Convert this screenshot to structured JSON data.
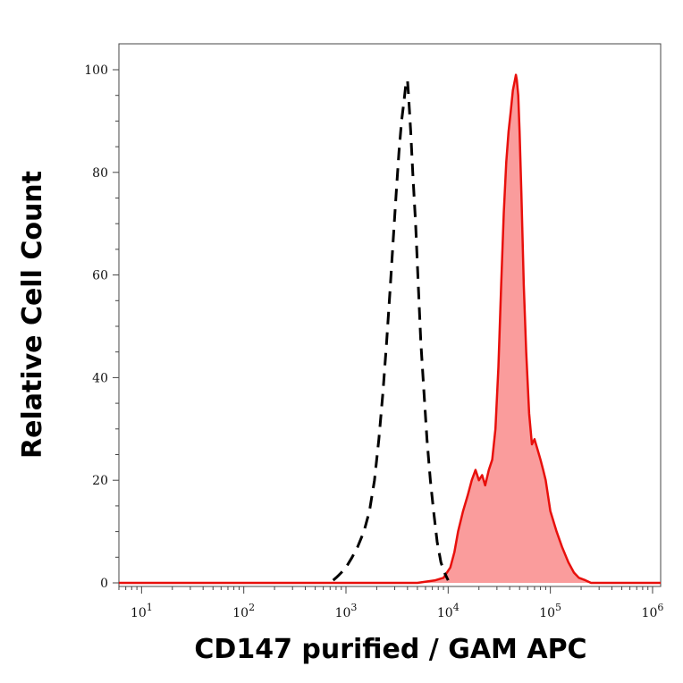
{
  "chart_data": {
    "type": "area",
    "title": "",
    "xlabel": "CD147 purified / GAM APC",
    "ylabel": "Relative Cell Count",
    "x_scale": "log",
    "xlim": [
      6,
      1200000
    ],
    "ylim": [
      0,
      100
    ],
    "grid": false,
    "x_ticks": [
      {
        "value": 10,
        "base": "10",
        "exp": "1"
      },
      {
        "value": 100,
        "base": "10",
        "exp": "2"
      },
      {
        "value": 1000,
        "base": "10",
        "exp": "3"
      },
      {
        "value": 10000,
        "base": "10",
        "exp": "4"
      },
      {
        "value": 100000,
        "base": "10",
        "exp": "5"
      },
      {
        "value": 1000000,
        "base": "10",
        "exp": "6"
      }
    ],
    "y_ticks": [
      0,
      20,
      40,
      60,
      80,
      100
    ],
    "series": [
      {
        "style": "filled",
        "color": "#e8100c",
        "fill": "#fa9c9c",
        "x": [
          6,
          100,
          1000,
          3000,
          5000,
          7500,
          9000,
          10500,
          11500,
          12500,
          14000,
          15500,
          17000,
          18500,
          20000,
          21500,
          23000,
          25000,
          27000,
          29000,
          31000,
          33000,
          35000,
          37000,
          39000,
          41000,
          43000,
          45000,
          46000,
          47000,
          48500,
          50000,
          52000,
          55000,
          58000,
          62000,
          66000,
          70000,
          75000,
          80000,
          85000,
          90000,
          100000,
          115000,
          130000,
          150000,
          170000,
          190000,
          220000,
          250000,
          300000,
          400000,
          600000,
          1200000
        ],
        "y": [
          0,
          0,
          0,
          0,
          0,
          0.5,
          1,
          3,
          6,
          10,
          14,
          17,
          20,
          22,
          20,
          21,
          19,
          22,
          24,
          30,
          42,
          58,
          72,
          82,
          88,
          92,
          96,
          98,
          99,
          98,
          95,
          88,
          76,
          58,
          45,
          33,
          27,
          28,
          26,
          24,
          22,
          20,
          14,
          10,
          7,
          4,
          2,
          1,
          0.5,
          0,
          0,
          0,
          0,
          0
        ]
      },
      {
        "style": "dashed",
        "color": "#000000",
        "x": [
          750,
          800,
          850,
          900,
          1000,
          1150,
          1300,
          1500,
          1700,
          1900,
          2100,
          2300,
          2500,
          2700,
          2900,
          3100,
          3300,
          3500,
          3700,
          3850,
          4000,
          4100,
          4300,
          4500,
          4800,
          5100,
          5400,
          5800,
          6200,
          6700,
          7200,
          7800,
          8500,
          9200,
          10000
        ],
        "y": [
          0.5,
          1,
          1.5,
          2,
          3,
          5,
          7,
          10,
          14,
          20,
          28,
          37,
          47,
          57,
          67,
          76,
          84,
          90,
          94,
          97,
          98,
          95,
          88,
          80,
          70,
          58,
          47,
          37,
          28,
          20,
          14,
          8,
          4,
          2,
          0.5
        ]
      }
    ]
  }
}
